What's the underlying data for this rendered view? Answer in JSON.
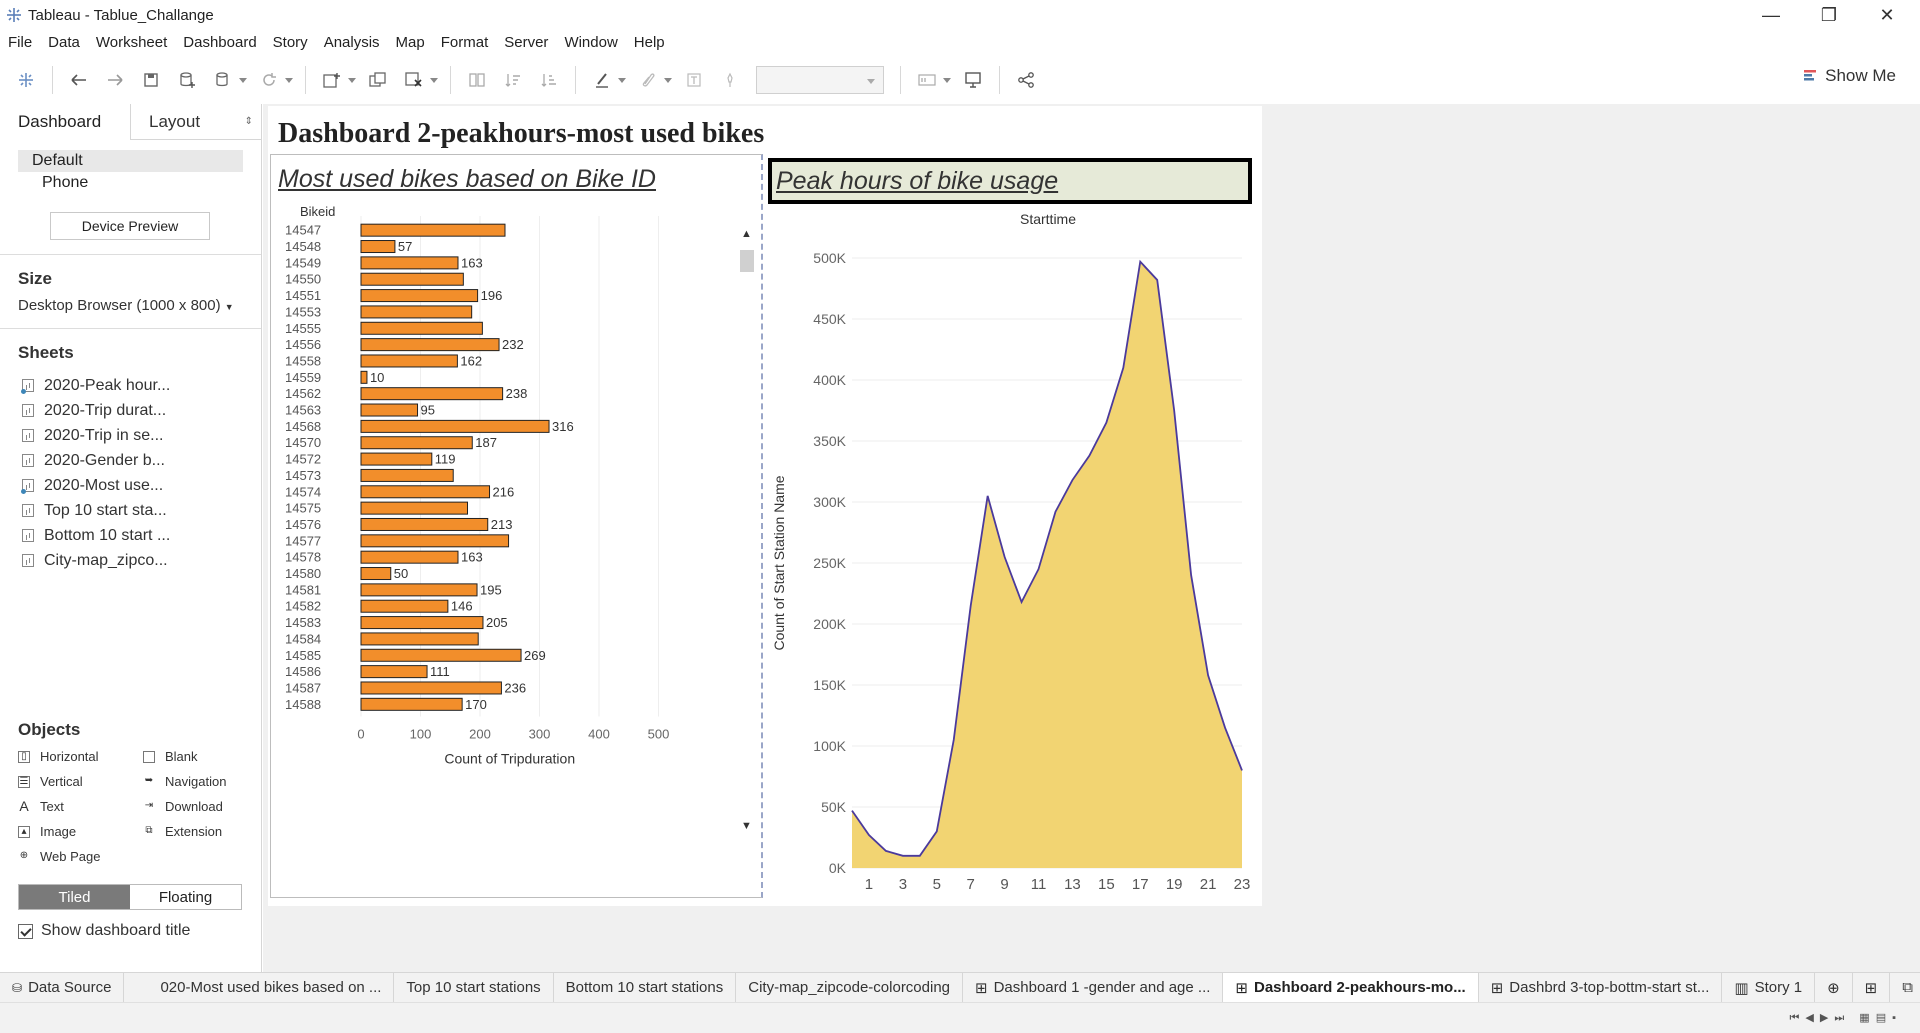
{
  "window": {
    "title": "Tableau - Tablue_Challange"
  },
  "menu": [
    "File",
    "Data",
    "Worksheet",
    "Dashboard",
    "Story",
    "Analysis",
    "Map",
    "Format",
    "Server",
    "Window",
    "Help"
  ],
  "toolbar": {
    "show_me": "Show Me"
  },
  "left_pane": {
    "tabs": [
      "Dashboard",
      "Layout"
    ],
    "devices": [
      "Default",
      "Phone"
    ],
    "device_preview": "Device Preview",
    "size_title": "Size",
    "size_value": "Desktop Browser (1000 x 800)",
    "sheets_title": "Sheets",
    "sheets": [
      "2020-Peak hour...",
      "2020-Trip durat...",
      "2020-Trip in se...",
      "2020-Gender b...",
      "2020-Most use...",
      "Top 10 start sta...",
      "Bottom 10 start ...",
      "City-map_zipco..."
    ],
    "objects_title": "Objects",
    "objects": [
      "Horizontal",
      "Blank",
      "Vertical",
      "Navigation",
      "Text",
      "Download",
      "Image",
      "Extension",
      "Web Page"
    ],
    "tiled": "Tiled",
    "floating": "Floating",
    "show_dashboard_title": "Show dashboard title"
  },
  "dashboard": {
    "title": "Dashboard 2-peakhours-most used bikes",
    "left_title": "Most used bikes based on Bike ID",
    "right_title": "Peak hours of bike usage"
  },
  "bottom_tabs": [
    "Data Source",
    "020-Most used bikes based on ...",
    "Top 10 start stations",
    "Bottom 10 start stations",
    "City-map_zipcode-colorcoding",
    "Dashboard 1 -gender and age ...",
    "Dashboard 2-peakhours-mo...",
    "Dashbrd 3-top-bottm-start st...",
    "Story 1"
  ],
  "colors": {
    "bar_fill": "#f28e2b",
    "area_fill": "#f2d472",
    "area_line": "#4b3a9c",
    "title_box": "#e6ead8"
  },
  "chart_data": [
    {
      "type": "bar",
      "orientation": "horizontal",
      "column_header": "Bikeid",
      "xlabel": "Count of Tripduration",
      "xlim": [
        0,
        600
      ],
      "xticks": [
        0,
        100,
        200,
        300,
        400,
        500
      ],
      "categories": [
        "14547",
        "14548",
        "14549",
        "14550",
        "14551",
        "14553",
        "14555",
        "14556",
        "14558",
        "14559",
        "14562",
        "14563",
        "14568",
        "14570",
        "14572",
        "14573",
        "14574",
        "14575",
        "14576",
        "14577",
        "14578",
        "14580",
        "14581",
        "14582",
        "14583",
        "14584",
        "14585",
        "14586",
        "14587",
        "14588"
      ],
      "values": [
        242,
        57,
        163,
        172,
        196,
        186,
        204,
        232,
        162,
        10,
        238,
        95,
        316,
        187,
        119,
        155,
        216,
        179,
        213,
        248,
        163,
        50,
        195,
        146,
        205,
        197,
        269,
        111,
        236,
        170
      ],
      "labels": [
        "",
        "57",
        "163",
        "",
        "196",
        "",
        "",
        "232",
        "162",
        "10",
        "238",
        "95",
        "316",
        "187",
        "119",
        "",
        "216",
        "",
        "213",
        "",
        "163",
        "50",
        "195",
        "146",
        "205",
        "",
        "269",
        "111",
        "236",
        "170"
      ]
    },
    {
      "type": "area",
      "title": "Starttime",
      "ylabel": "Count of Start Station Name",
      "ylim": [
        0,
        500000
      ],
      "yticks": [
        0,
        50000,
        100000,
        150000,
        200000,
        250000,
        300000,
        350000,
        400000,
        450000,
        500000
      ],
      "ytick_labels": [
        "0K",
        "50K",
        "100K",
        "150K",
        "200K",
        "250K",
        "300K",
        "350K",
        "400K",
        "450K",
        "500K"
      ],
      "xticks": [
        1,
        3,
        5,
        7,
        9,
        11,
        13,
        15,
        17,
        19,
        21,
        23
      ],
      "x": [
        0,
        1,
        2,
        3,
        4,
        5,
        6,
        7,
        8,
        9,
        10,
        11,
        12,
        13,
        14,
        15,
        16,
        17,
        18,
        19,
        20,
        21,
        22,
        23
      ],
      "y": [
        47000,
        27000,
        14000,
        10000,
        10000,
        30000,
        105000,
        215000,
        305000,
        255000,
        218000,
        245000,
        292000,
        318000,
        338000,
        365000,
        410000,
        497000,
        482000,
        375000,
        240000,
        158000,
        115000,
        80000
      ]
    }
  ]
}
